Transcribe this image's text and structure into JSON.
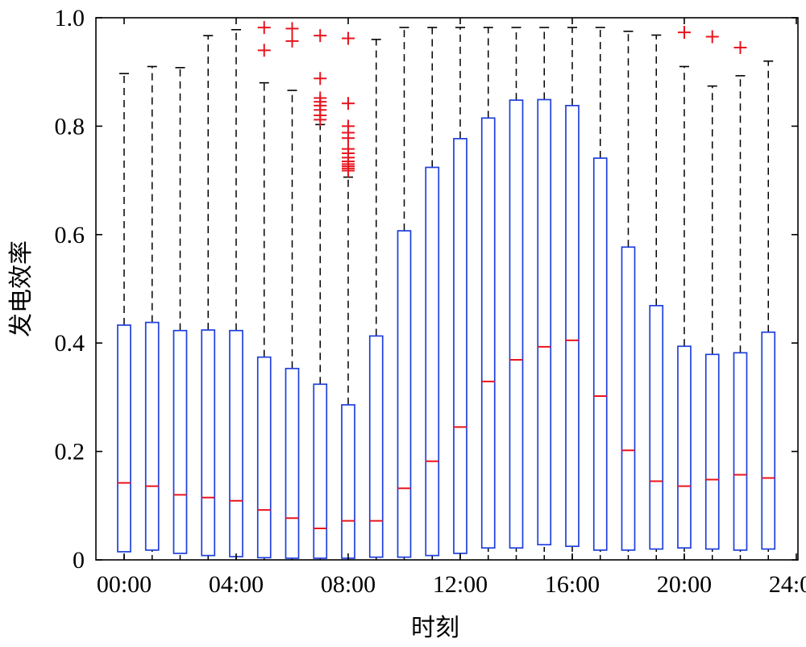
{
  "chart_data": {
    "type": "box",
    "title": "",
    "xlabel": "时刻",
    "ylabel": "发电效率",
    "ylim": [
      0,
      1
    ],
    "yticks": [
      "0",
      "0.2",
      "0.4",
      "0.6",
      "0.8",
      "1.0"
    ],
    "xticks": [
      "00:00",
      "04:00",
      "08:00",
      "12:00",
      "16:00",
      "20:00",
      "24:00"
    ],
    "xtick_hours": [
      0,
      4,
      8,
      12,
      16,
      20,
      24
    ],
    "grid": false,
    "legend": "none",
    "colors": {
      "box": "#1f3fdc",
      "median": "#e8141e",
      "outlier": "#e8141e",
      "whisker": "#000000"
    },
    "boxes": [
      {
        "hour": 0,
        "whislo": 0,
        "q1": 0.015,
        "median": 0.142,
        "q3": 0.433,
        "whishi": 0.897,
        "fliers": []
      },
      {
        "hour": 1,
        "whislo": 0,
        "q1": 0.018,
        "median": 0.136,
        "q3": 0.438,
        "whishi": 0.91,
        "fliers": []
      },
      {
        "hour": 2,
        "whislo": 0,
        "q1": 0.012,
        "median": 0.12,
        "q3": 0.423,
        "whishi": 0.908,
        "fliers": []
      },
      {
        "hour": 3,
        "whislo": 0,
        "q1": 0.008,
        "median": 0.115,
        "q3": 0.424,
        "whishi": 0.967,
        "fliers": []
      },
      {
        "hour": 4,
        "whislo": 0,
        "q1": 0.006,
        "median": 0.109,
        "q3": 0.423,
        "whishi": 0.978,
        "fliers": []
      },
      {
        "hour": 5,
        "whislo": 0,
        "q1": 0.004,
        "median": 0.092,
        "q3": 0.374,
        "whishi": 0.88,
        "fliers": [
          0.94,
          0.982
        ]
      },
      {
        "hour": 6,
        "whislo": 0,
        "q1": 0.003,
        "median": 0.077,
        "q3": 0.353,
        "whishi": 0.866,
        "fliers": [
          0.957,
          0.98
        ]
      },
      {
        "hour": 7,
        "whislo": 0,
        "q1": 0.003,
        "median": 0.058,
        "q3": 0.324,
        "whishi": 0.803,
        "fliers": [
          0.812,
          0.82,
          0.83,
          0.838,
          0.845,
          0.852,
          0.888,
          0.967
        ]
      },
      {
        "hour": 8,
        "whislo": 0,
        "q1": 0.003,
        "median": 0.072,
        "q3": 0.286,
        "whishi": 0.706,
        "fliers": [
          0.718,
          0.722,
          0.726,
          0.73,
          0.735,
          0.742,
          0.75,
          0.758,
          0.778,
          0.788,
          0.8,
          0.842,
          0.962
        ]
      },
      {
        "hour": 9,
        "whislo": 0,
        "q1": 0.005,
        "median": 0.072,
        "q3": 0.413,
        "whishi": 0.96,
        "fliers": []
      },
      {
        "hour": 10,
        "whislo": 0,
        "q1": 0.005,
        "median": 0.132,
        "q3": 0.607,
        "whishi": 0.982,
        "fliers": []
      },
      {
        "hour": 11,
        "whislo": 0,
        "q1": 0.008,
        "median": 0.182,
        "q3": 0.724,
        "whishi": 0.982,
        "fliers": []
      },
      {
        "hour": 12,
        "whislo": 0,
        "q1": 0.012,
        "median": 0.245,
        "q3": 0.777,
        "whishi": 0.982,
        "fliers": []
      },
      {
        "hour": 13,
        "whislo": 0,
        "q1": 0.022,
        "median": 0.329,
        "q3": 0.815,
        "whishi": 0.982,
        "fliers": []
      },
      {
        "hour": 14,
        "whislo": 0,
        "q1": 0.022,
        "median": 0.369,
        "q3": 0.848,
        "whishi": 0.982,
        "fliers": []
      },
      {
        "hour": 15,
        "whislo": 0,
        "q1": 0.028,
        "median": 0.393,
        "q3": 0.849,
        "whishi": 0.982,
        "fliers": []
      },
      {
        "hour": 16,
        "whislo": 0,
        "q1": 0.025,
        "median": 0.405,
        "q3": 0.838,
        "whishi": 0.982,
        "fliers": []
      },
      {
        "hour": 17,
        "whislo": 0,
        "q1": 0.018,
        "median": 0.302,
        "q3": 0.741,
        "whishi": 0.982,
        "fliers": []
      },
      {
        "hour": 18,
        "whislo": 0,
        "q1": 0.018,
        "median": 0.202,
        "q3": 0.577,
        "whishi": 0.975,
        "fliers": []
      },
      {
        "hour": 19,
        "whislo": 0,
        "q1": 0.02,
        "median": 0.145,
        "q3": 0.469,
        "whishi": 0.968,
        "fliers": []
      },
      {
        "hour": 20,
        "whislo": 0,
        "q1": 0.022,
        "median": 0.136,
        "q3": 0.394,
        "whishi": 0.91,
        "fliers": [
          0.973
        ]
      },
      {
        "hour": 21,
        "whislo": 0,
        "q1": 0.02,
        "median": 0.148,
        "q3": 0.379,
        "whishi": 0.874,
        "fliers": [
          0.965
        ]
      },
      {
        "hour": 22,
        "whislo": 0,
        "q1": 0.018,
        "median": 0.157,
        "q3": 0.382,
        "whishi": 0.893,
        "fliers": [
          0.945
        ]
      },
      {
        "hour": 23,
        "whislo": 0,
        "q1": 0.02,
        "median": 0.151,
        "q3": 0.42,
        "whishi": 0.92,
        "fliers": []
      }
    ]
  }
}
